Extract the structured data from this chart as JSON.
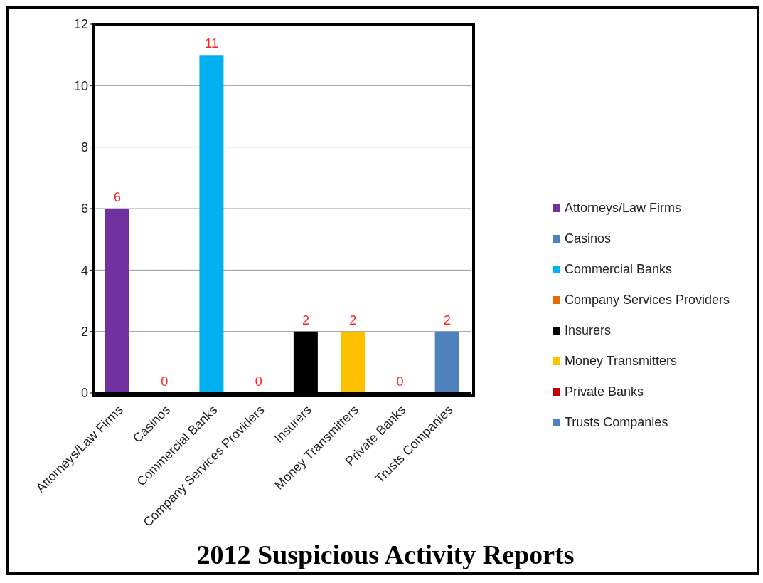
{
  "chart_data": {
    "type": "bar",
    "title": "2012 Suspicious Activity Reports",
    "stacked": true,
    "categories": [
      "Attorneys/Law Firms",
      "Casinos",
      "Commercial Banks",
      "Company Services Providers",
      "Insurers",
      "Money Transmitters",
      "Private Banks",
      "Trusts Companies"
    ],
    "series": [
      {
        "name": "Attorneys/Law Firms",
        "color": "#7030a0",
        "values": [
          6,
          null,
          null,
          null,
          null,
          null,
          null,
          null
        ]
      },
      {
        "name": "Casinos",
        "color": "#4f81bd",
        "values": [
          null,
          0,
          null,
          null,
          null,
          null,
          null,
          null
        ]
      },
      {
        "name": "Commercial Banks",
        "color": "#00b0f0",
        "values": [
          null,
          null,
          11,
          null,
          null,
          null,
          null,
          null
        ]
      },
      {
        "name": "Company Services Providers",
        "color": "#e36c09",
        "values": [
          null,
          null,
          null,
          0,
          null,
          null,
          null,
          null
        ]
      },
      {
        "name": "Insurers",
        "color": "#000000",
        "values": [
          null,
          null,
          null,
          null,
          2,
          null,
          null,
          null
        ]
      },
      {
        "name": "Money Transmitters",
        "color": "#ffc000",
        "values": [
          null,
          null,
          null,
          null,
          null,
          2,
          null,
          null
        ]
      },
      {
        "name": "Private Banks",
        "color": "#c00000",
        "values": [
          null,
          null,
          null,
          null,
          null,
          null,
          0,
          null
        ]
      },
      {
        "name": "Trusts Companies",
        "color": "#4f81bd",
        "values": [
          null,
          null,
          null,
          null,
          null,
          null,
          null,
          2
        ]
      }
    ],
    "ylim": [
      0,
      12
    ],
    "yticks": [
      0,
      2,
      4,
      6,
      8,
      10,
      12
    ],
    "grid": "y",
    "legend": "right",
    "data_labels": true
  }
}
